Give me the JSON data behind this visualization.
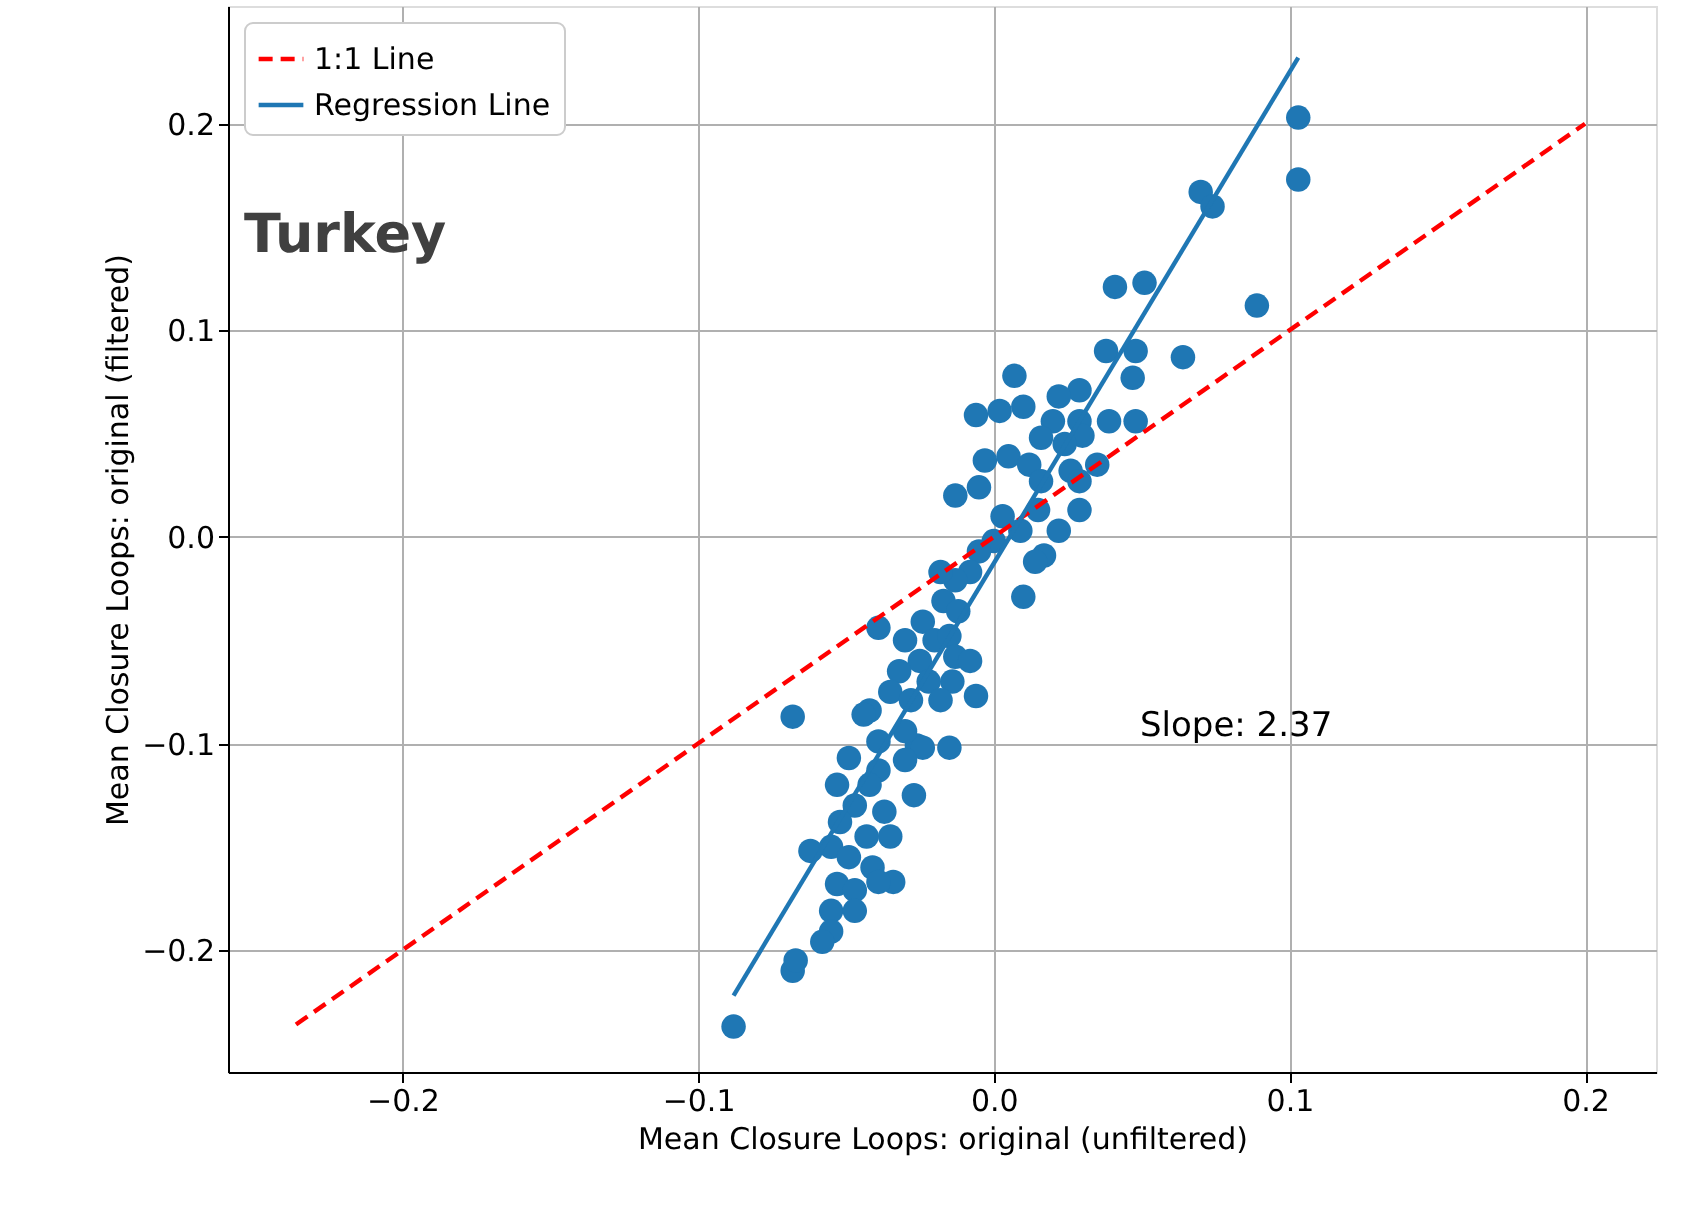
{
  "chart_data": {
    "type": "scatter",
    "title": "Turkey",
    "xlabel": "Mean Closure Loops: original (unfiltered)",
    "ylabel": "Mean Closure Loops: original (filtered)",
    "xlim": [
      -0.259,
      0.224
    ],
    "ylim": [
      -0.259,
      0.257
    ],
    "xticks": [
      {
        "value": -0.2,
        "label": "−0.2"
      },
      {
        "value": -0.1,
        "label": "−0.1"
      },
      {
        "value": 0,
        "label": "0.0"
      },
      0.1,
      0.2
    ],
    "yticks": [
      {
        "value": -0.2,
        "label": "−0.2"
      },
      {
        "value": -0.1,
        "label": "−0.1"
      },
      {
        "value": 0,
        "label": "0.0"
      },
      0.1,
      0.2
    ],
    "grid": true,
    "legend": "top left",
    "annotations": [
      "Slope: 2.37"
    ],
    "series": [
      {
        "marker": "circle",
        "color": "#1f77b4",
        "x": [
          -0.088,
          -0.068,
          -0.067,
          -0.068,
          0.103,
          0.103,
          0.089,
          0.07,
          0.074,
          0.041,
          0.051,
          0.064,
          0.038,
          0.048,
          0.047,
          0.029,
          0.048,
          0.007,
          -0.006,
          0.01,
          0.002,
          0.02,
          0.029,
          0.039,
          0.022,
          0.03,
          0.024,
          0.016,
          -0.013,
          -0.005,
          -0.003,
          0.005,
          0.012,
          0.003,
          0.016,
          0.026,
          0.029,
          0.015,
          0.009,
          0.022,
          0.017,
          0.014,
          0.01,
          0.029,
          0.035,
          0.0,
          -0.005,
          -0.008,
          -0.013,
          -0.018,
          -0.017,
          -0.024,
          -0.012,
          -0.039,
          -0.03,
          -0.02,
          -0.015,
          -0.025,
          -0.013,
          -0.032,
          -0.022,
          -0.008,
          -0.006,
          -0.014,
          -0.035,
          -0.028,
          -0.042,
          -0.018,
          -0.044,
          -0.039,
          -0.026,
          -0.015,
          -0.024,
          -0.049,
          -0.039,
          -0.03,
          -0.042,
          -0.027,
          -0.053,
          -0.047,
          -0.037,
          -0.052,
          -0.043,
          -0.035,
          -0.062,
          -0.055,
          -0.049,
          -0.041,
          -0.034,
          -0.053,
          -0.047,
          -0.055,
          -0.047,
          -0.055,
          -0.058,
          -0.039,
          -0.03
        ],
        "values": [
          -0.237,
          -0.21,
          -0.205,
          -0.087,
          0.203,
          0.173,
          0.112,
          0.167,
          0.16,
          0.121,
          0.123,
          0.087,
          0.09,
          0.09,
          0.077,
          0.071,
          0.056,
          0.078,
          0.059,
          0.063,
          0.061,
          0.056,
          0.056,
          0.056,
          0.068,
          0.049,
          0.045,
          0.048,
          0.02,
          0.024,
          0.037,
          0.039,
          0.035,
          0.01,
          0.027,
          0.032,
          0.013,
          0.013,
          0.003,
          0.003,
          -0.009,
          -0.012,
          -0.029,
          0.027,
          0.035,
          -0.002,
          -0.007,
          -0.017,
          -0.021,
          -0.017,
          -0.031,
          -0.041,
          -0.036,
          -0.044,
          -0.05,
          -0.05,
          -0.048,
          -0.06,
          -0.058,
          -0.065,
          -0.07,
          -0.06,
          -0.077,
          -0.07,
          -0.075,
          -0.079,
          -0.084,
          -0.079,
          -0.086,
          -0.099,
          -0.101,
          -0.102,
          -0.102,
          -0.107,
          -0.113,
          -0.108,
          -0.12,
          -0.125,
          -0.12,
          -0.13,
          -0.133,
          -0.138,
          -0.145,
          -0.145,
          -0.152,
          -0.15,
          -0.155,
          -0.16,
          -0.167,
          -0.168,
          -0.171,
          -0.181,
          -0.181,
          -0.191,
          -0.196,
          -0.167,
          -0.094
        ]
      },
      {
        "type": "line",
        "marker": "none",
        "name": "1:1 Line",
        "color": "#ff0000",
        "line_style": "dashed",
        "x": [
          -0.236,
          0.2
        ],
        "values": [
          -0.236,
          0.2
        ]
      },
      {
        "type": "line",
        "marker": "none",
        "name": "Regression Line",
        "color": "#1f77b4",
        "line_style": "solid",
        "x": [
          -0.088,
          0.103
        ],
        "values": [
          -0.222,
          0.232
        ]
      }
    ]
  }
}
